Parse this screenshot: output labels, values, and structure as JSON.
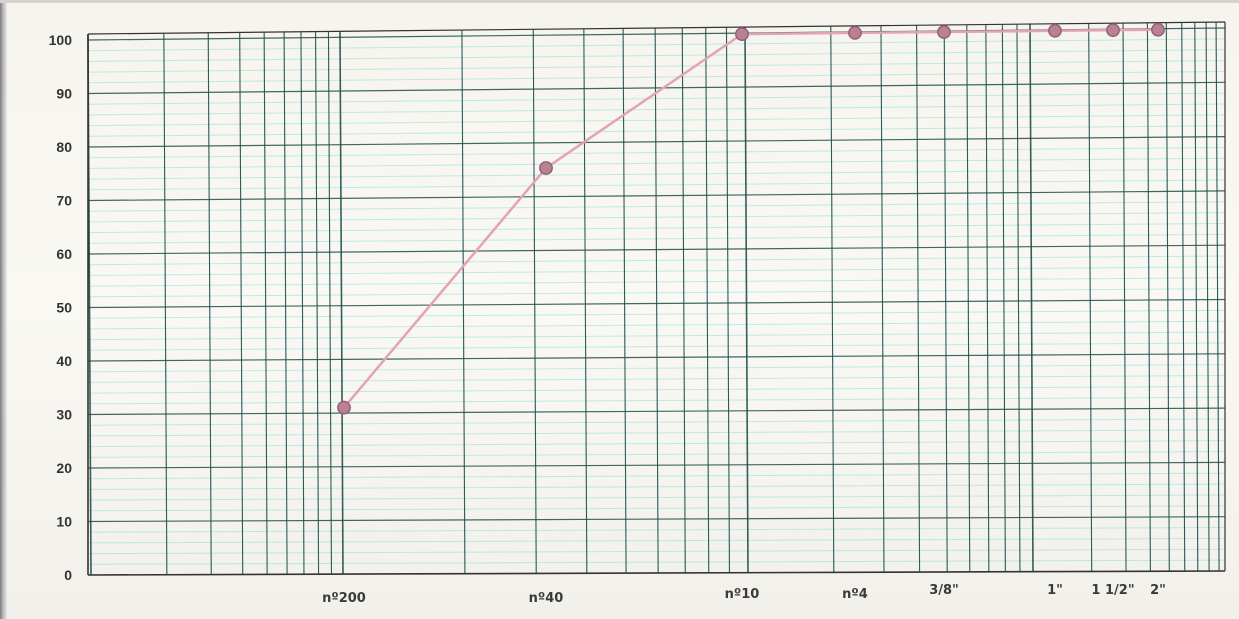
{
  "chart_data": {
    "type": "line",
    "title": "",
    "xlabel": "",
    "ylabel": "",
    "x_scale": "log",
    "ylim": [
      0,
      100
    ],
    "y_ticks": [
      "0",
      "10",
      "20",
      "30",
      "40",
      "50",
      "60",
      "70",
      "80",
      "90",
      "100"
    ],
    "x_tick_labels": [
      "nº200",
      "nº40",
      "nº10",
      "nº4",
      "3/8\"",
      "1\"",
      "1 1/2\"",
      "2\""
    ],
    "series": [
      {
        "name": "",
        "points": [
          {
            "x": "nº200",
            "y": 31.2
          },
          {
            "x": "nº40",
            "y": 75.5
          },
          {
            "x": "nº10",
            "y": 100.0
          },
          {
            "x": "nº4",
            "y": 100.0
          },
          {
            "x": "3/8\"",
            "y": 100.0
          },
          {
            "x": "1\"",
            "y": 100.0
          },
          {
            "x": "1 1/2\"",
            "y": 100.0
          },
          {
            "x": "2\"",
            "y": 100.0
          }
        ]
      }
    ],
    "grid": true,
    "legend": "none",
    "colors": {
      "major_grid": "#214d4d",
      "minor_grid": "#7ed6df",
      "line": "#e3a3b5",
      "marker_fill": "#b98193",
      "marker_stroke": "#8f6070",
      "axis_text": "#333333"
    }
  }
}
